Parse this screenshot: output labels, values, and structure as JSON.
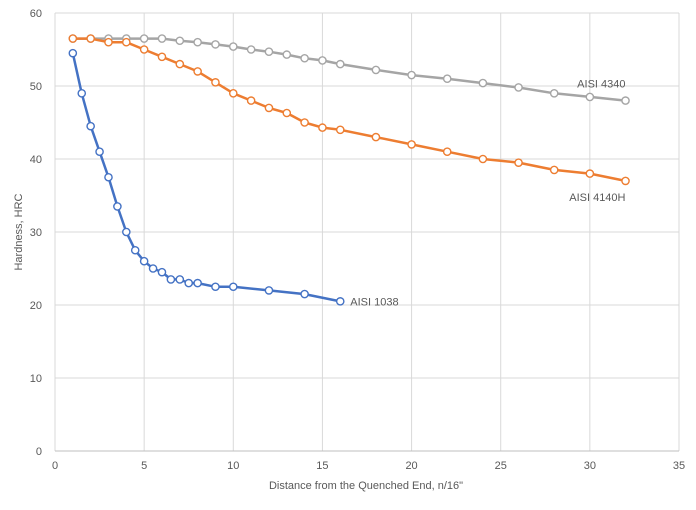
{
  "chart_data": {
    "type": "line",
    "title": "",
    "xlabel": "Distance from the Quenched End, n/16\"",
    "ylabel": "Hardness, HRC",
    "xlim": [
      0,
      35
    ],
    "ylim": [
      0,
      60
    ],
    "xticks": [
      0,
      5,
      10,
      15,
      20,
      25,
      30,
      35
    ],
    "yticks": [
      0,
      10,
      20,
      30,
      40,
      50,
      60
    ],
    "grid": true,
    "legend": "inline labels at series ends",
    "series": [
      {
        "name": "AISI 4340",
        "color": "#a5a5a5",
        "label_pos": "above",
        "x": [
          1,
          2,
          3,
          4,
          5,
          6,
          7,
          8,
          9,
          10,
          11,
          12,
          13,
          14,
          15,
          16,
          18,
          20,
          22,
          24,
          26,
          28,
          30,
          32
        ],
        "y": [
          56.5,
          56.5,
          56.5,
          56.5,
          56.5,
          56.5,
          56.2,
          56.0,
          55.7,
          55.4,
          55.0,
          54.7,
          54.3,
          53.8,
          53.5,
          53.0,
          52.2,
          51.5,
          51.0,
          50.4,
          49.8,
          49.0,
          48.5,
          48.0
        ]
      },
      {
        "name": "AISI 4140H",
        "color": "#ed7d31",
        "label_pos": "below",
        "x": [
          1,
          2,
          3,
          4,
          5,
          6,
          7,
          8,
          9,
          10,
          11,
          12,
          13,
          14,
          15,
          16,
          18,
          20,
          22,
          24,
          26,
          28,
          30,
          32
        ],
        "y": [
          56.5,
          56.5,
          56.0,
          56.0,
          55.0,
          54.0,
          53.0,
          52.0,
          50.5,
          49.0,
          48.0,
          47.0,
          46.3,
          45.0,
          44.3,
          44.0,
          43.0,
          42.0,
          41.0,
          40.0,
          39.5,
          38.5,
          38.0,
          37.0
        ]
      },
      {
        "name": "AISI 1038",
        "color": "#4472c4",
        "label_pos": "right",
        "x": [
          1,
          1.5,
          2,
          2.5,
          3,
          3.5,
          4,
          4.5,
          5,
          5.5,
          6,
          6.5,
          7,
          7.5,
          8,
          9,
          10,
          12,
          14,
          16
        ],
        "y": [
          54.5,
          49.0,
          44.5,
          41.0,
          37.5,
          33.5,
          30.0,
          27.5,
          26.0,
          25.0,
          24.5,
          23.5,
          23.5,
          23.0,
          23.0,
          22.5,
          22.5,
          22.0,
          21.5,
          20.5
        ]
      }
    ]
  }
}
